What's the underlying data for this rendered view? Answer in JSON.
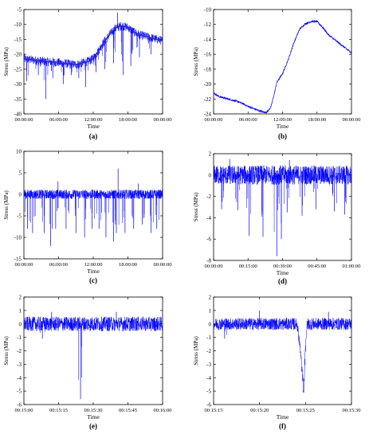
{
  "chart_data": [
    {
      "type": "line",
      "panel_label": "(a)",
      "xlabel": "Time",
      "ylabel": "Stress (MPa)",
      "xticks": [
        "00:00:00",
        "06:00:00",
        "12:00:00",
        "18:00:00",
        "00:00:00"
      ],
      "yticks": [
        -5,
        -10,
        -15,
        -20,
        -25,
        -30,
        -35,
        -40
      ],
      "ylim": [
        -40,
        -5
      ],
      "xlim_hours": [
        0,
        24
      ],
      "series_color": "#0000ff",
      "series": [
        {
          "x_hours": [
            0,
            1,
            2,
            3,
            4,
            5,
            6,
            7,
            8,
            9,
            10,
            11,
            12,
            13,
            14,
            15,
            16,
            17,
            18,
            19,
            20,
            21,
            22,
            23,
            24
          ],
          "y": [
            -21.5,
            -21.8,
            -22.0,
            -22.3,
            -22.5,
            -22.6,
            -22.8,
            -23.0,
            -23.3,
            -23.5,
            -23.0,
            -22.5,
            -21.5,
            -18.5,
            -15.5,
            -13.0,
            -11.0,
            -10.5,
            -11.0,
            -12.5,
            -13.5,
            -14.0,
            -14.5,
            -15.0,
            -15.5
          ],
          "dips": [
            {
              "t": 0.5,
              "y": -29
            },
            {
              "t": 2.5,
              "y": -27
            },
            {
              "t": 3.8,
              "y": -35
            },
            {
              "t": 5.0,
              "y": -28
            },
            {
              "t": 6.8,
              "y": -30
            },
            {
              "t": 8.2,
              "y": -27
            },
            {
              "t": 9.5,
              "y": -28
            },
            {
              "t": 10.7,
              "y": -31
            },
            {
              "t": 12.5,
              "y": -26
            },
            {
              "t": 14.0,
              "y": -25
            },
            {
              "t": 15.5,
              "y": -23
            },
            {
              "t": 17.2,
              "y": -27
            },
            {
              "t": 18.5,
              "y": -24
            },
            {
              "t": 20.0,
              "y": -21
            },
            {
              "t": 22.0,
              "y": -20
            }
          ],
          "spikes": [
            {
              "t": 16.2,
              "y": -6
            }
          ]
        }
      ]
    },
    {
      "type": "line",
      "panel_label": "(b)",
      "xlabel": "Time",
      "ylabel": "Stress (MPa)",
      "xticks": [
        "00:00:00",
        "06:00:00",
        "12:00:00",
        "18:00:00",
        "00:00:00"
      ],
      "yticks": [
        -10,
        -12,
        -14,
        -16,
        -18,
        -20,
        -22,
        -24
      ],
      "ylim": [
        -24,
        -10
      ],
      "xlim_hours": [
        0,
        24
      ],
      "series_color": "#0000ff",
      "series": [
        {
          "x_hours": [
            0,
            1,
            2,
            3,
            4,
            5,
            6,
            7,
            8,
            9,
            9.5,
            10,
            10.5,
            11,
            12,
            13,
            14,
            15,
            16,
            17,
            18,
            19,
            20,
            21,
            22,
            23,
            24
          ],
          "y": [
            -21.2,
            -21.7,
            -21.9,
            -22.1,
            -22.3,
            -22.6,
            -23.0,
            -23.3,
            -23.6,
            -23.8,
            -23.6,
            -23.0,
            -21.5,
            -19.8,
            -18.6,
            -16.7,
            -14.4,
            -12.6,
            -11.9,
            -11.6,
            -11.6,
            -12.4,
            -13.4,
            -14.0,
            -14.6,
            -15.2,
            -15.8
          ]
        }
      ]
    },
    {
      "type": "line",
      "panel_label": "(c)",
      "xlabel": "Time",
      "ylabel": "Stress (MPa)",
      "xticks": [
        "00:00:00",
        "06:00:00",
        "12:00:00",
        "18:00:00",
        "00:00:00"
      ],
      "yticks": [
        10,
        5,
        0,
        -5,
        -10,
        -15
      ],
      "ylim": [
        -15,
        10
      ],
      "xlim_hours": [
        0,
        24
      ],
      "series_color": "#0000ff",
      "series": [
        {
          "baseline": 0,
          "noise_band": [
            -1.2,
            1.2
          ],
          "dips": [
            {
              "t": 0.6,
              "y": -8
            },
            {
              "t": 1.5,
              "y": -9
            },
            {
              "t": 3.5,
              "y": -9
            },
            {
              "t": 4.6,
              "y": -12
            },
            {
              "t": 5.5,
              "y": -8
            },
            {
              "t": 7.3,
              "y": -8
            },
            {
              "t": 9.0,
              "y": -9
            },
            {
              "t": 10.5,
              "y": -10
            },
            {
              "t": 11.8,
              "y": -8
            },
            {
              "t": 13.0,
              "y": -8
            },
            {
              "t": 14.2,
              "y": -10
            },
            {
              "t": 15.5,
              "y": -11
            },
            {
              "t": 16.0,
              "y": -9
            },
            {
              "t": 17.5,
              "y": -9
            },
            {
              "t": 19.0,
              "y": -8
            },
            {
              "t": 20.5,
              "y": -7
            },
            {
              "t": 22.0,
              "y": -9
            },
            {
              "t": 23.0,
              "y": -8
            }
          ],
          "spikes": [
            {
              "t": 5.9,
              "y": 3
            },
            {
              "t": 16.3,
              "y": 6
            },
            {
              "t": 19.8,
              "y": 2.5
            }
          ]
        }
      ]
    },
    {
      "type": "line",
      "panel_label": "(d)",
      "xlabel": "Time",
      "ylabel": "Stress (MPa)",
      "xticks": [
        "00:00:00",
        "00:15:00",
        "00:30:00",
        "00:45:00",
        "01:00:00"
      ],
      "yticks": [
        2,
        0,
        -2,
        -4,
        -6,
        -8
      ],
      "ylim": [
        -8,
        2
      ],
      "xlim_minutes": [
        0,
        60
      ],
      "series_color": "#0000ff",
      "series": [
        {
          "baseline": 0,
          "noise_band": [
            -1,
            1
          ],
          "dips": [
            {
              "t": 3.5,
              "y": -3.2
            },
            {
              "t": 10.5,
              "y": -3.3
            },
            {
              "t": 15.5,
              "y": -5.7
            },
            {
              "t": 21.5,
              "y": -5.8
            },
            {
              "t": 27.5,
              "y": -7.6
            },
            {
              "t": 29.5,
              "y": -6.0
            },
            {
              "t": 32.0,
              "y": -3.5
            },
            {
              "t": 38.5,
              "y": -3.8
            },
            {
              "t": 44.5,
              "y": -3.2
            },
            {
              "t": 52.5,
              "y": -3.4
            },
            {
              "t": 57.0,
              "y": -3.7
            }
          ],
          "spikes": [
            {
              "t": 7.0,
              "y": 1.5
            },
            {
              "t": 33.0,
              "y": 1.4
            }
          ]
        }
      ]
    },
    {
      "type": "line",
      "panel_label": "(e)",
      "xlabel": "Time",
      "ylabel": "Stress (MPa)",
      "xticks": [
        "00:15:00",
        "00:15:15",
        "00:15:30",
        "00:15:45",
        "00:16:00"
      ],
      "yticks": [
        2,
        1,
        0,
        -1,
        -2,
        -3,
        -4,
        -5,
        -6
      ],
      "ylim": [
        -6,
        2
      ],
      "xlim_seconds": [
        0,
        60
      ],
      "series_color": "#0000ff",
      "series": [
        {
          "baseline": 0,
          "noise_band": [
            -0.6,
            0.6
          ],
          "dips": [
            {
              "t": 24.5,
              "y": -5.6
            },
            {
              "t": 8.0,
              "y": -1.1
            }
          ],
          "spikes": [
            {
              "t": 12.0,
              "y": 0.9
            },
            {
              "t": 40.0,
              "y": 0.9
            }
          ]
        }
      ]
    },
    {
      "type": "line",
      "panel_label": "(f)",
      "xlabel": "Time",
      "ylabel": "Stress (MPa)",
      "xticks": [
        "00:15:15",
        "00:15:20",
        "00:15:25",
        "00:15:30"
      ],
      "yticks": [
        2,
        1,
        0,
        -1,
        -2,
        -3,
        -4,
        -5,
        -6
      ],
      "ylim": [
        -6,
        2
      ],
      "xlim_seconds": [
        0,
        15
      ],
      "series_color": "#0000ff",
      "series": [
        {
          "baseline": 0,
          "noise_band": [
            -0.5,
            0.5
          ],
          "event": {
            "start": 9.0,
            "min_t": 9.8,
            "min_y": -5.6,
            "end": 10.2
          },
          "dips": [
            {
              "t": 1.2,
              "y": -1.1
            }
          ],
          "spikes": [
            {
              "t": 5.0,
              "y": 1.0
            },
            {
              "t": 12.5,
              "y": 0.9
            }
          ]
        }
      ]
    }
  ]
}
